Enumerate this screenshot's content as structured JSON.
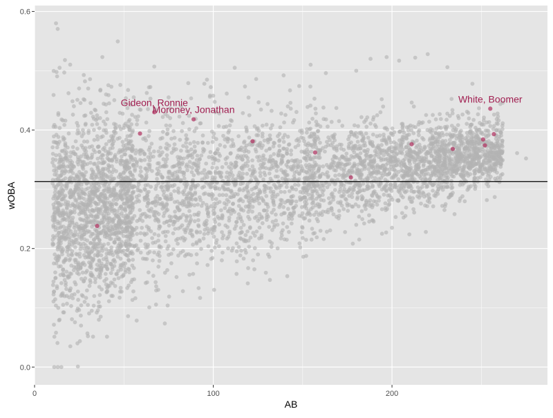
{
  "chart_data": {
    "type": "scatter",
    "title": "",
    "xlabel": "AB",
    "ylabel": "wOBA",
    "xlim": [
      0,
      287
    ],
    "ylim": [
      -0.03,
      0.61
    ],
    "x_ticks": [
      0,
      100,
      200
    ],
    "y_ticks": [
      0.0,
      0.2,
      0.4,
      0.6
    ],
    "x_tick_labels": [
      "0",
      "100",
      "200"
    ],
    "y_tick_labels": [
      "0.0",
      "0.2",
      "0.4",
      "0.6"
    ],
    "grid": true,
    "legend": "none",
    "reference_line": {
      "y": 0.313
    },
    "colors": {
      "panel": "#e5e5e5",
      "grid": "#ffffff",
      "background_points": "#b3b3b3",
      "highlight_points": "#b03060",
      "label": "#a01e50",
      "reference_line": "#000000"
    },
    "background_points_description": "approx 5000 grey semi-transparent player points spread from AB 10 to 275",
    "series": [
      {
        "name": "",
        "role": "background",
        "points": [
          [
            12,
            0.58
          ],
          [
            14,
            0.505
          ],
          [
            17,
            0.518
          ],
          [
            19,
            0.462
          ],
          [
            22,
            0.44
          ],
          [
            25,
            0.395
          ],
          [
            30,
            0.47
          ],
          [
            35,
            0.41
          ],
          [
            40,
            0.46
          ],
          [
            43,
            0.473
          ],
          [
            48,
            0.476
          ],
          [
            52,
            0.437
          ],
          [
            58,
            0.423
          ],
          [
            64,
            0.472
          ],
          [
            67,
            0.507
          ],
          [
            75,
            0.455
          ],
          [
            82,
            0.44
          ],
          [
            95,
            0.478
          ],
          [
            112,
            0.505
          ],
          [
            124,
            0.486
          ],
          [
            163,
            0.496
          ],
          [
            180,
            0.5
          ],
          [
            188,
            0.52
          ],
          [
            197,
            0.523
          ],
          [
            204,
            0.517
          ],
          [
            213,
            0.522
          ],
          [
            220,
            0.528
          ],
          [
            231,
            0.506
          ],
          [
            245,
            0.478
          ],
          [
            262,
            0.446
          ],
          [
            270,
            0.361
          ],
          [
            275,
            0.352
          ],
          [
            11,
            0.0
          ],
          [
            13,
            0.0
          ],
          [
            15,
            0.0
          ],
          [
            12,
            0.058
          ],
          [
            14,
            0.08
          ],
          [
            16,
            0.105
          ],
          [
            18,
            0.12
          ],
          [
            20,
            0.035
          ],
          [
            24,
            0.04
          ],
          [
            26,
            0.07
          ],
          [
            28,
            0.11
          ],
          [
            32,
            0.095
          ],
          [
            37,
            0.085
          ],
          [
            47,
            0.15
          ],
          [
            53,
            0.16
          ],
          [
            63,
            0.143
          ],
          [
            85,
            0.19
          ],
          [
            117,
            0.183
          ],
          [
            123,
            0.165
          ],
          [
            125,
            0.19
          ],
          [
            155,
            0.215
          ],
          [
            160,
            0.23
          ],
          [
            180,
            0.24
          ],
          [
            200,
            0.235
          ],
          [
            230,
            0.275
          ],
          [
            235,
            0.258
          ]
        ]
      },
      {
        "name": "",
        "role": "highlight",
        "points": [
          [
            35,
            0.238
          ],
          [
            59,
            0.394
          ],
          [
            67,
            0.43
          ],
          [
            89,
            0.418
          ],
          [
            122,
            0.381
          ],
          [
            157,
            0.362
          ],
          [
            177,
            0.32
          ],
          [
            211,
            0.376
          ],
          [
            234,
            0.368
          ],
          [
            251,
            0.384
          ],
          [
            252,
            0.374
          ],
          [
            255,
            0.436
          ],
          [
            257,
            0.393
          ]
        ]
      }
    ],
    "annotations": [
      {
        "text": "Gideon, Ronnie",
        "x": 67,
        "y": 0.43
      },
      {
        "text": "Moroney, Jonathan",
        "x": 89,
        "y": 0.418
      },
      {
        "text": "White, Boomer",
        "x": 255,
        "y": 0.436
      }
    ]
  }
}
